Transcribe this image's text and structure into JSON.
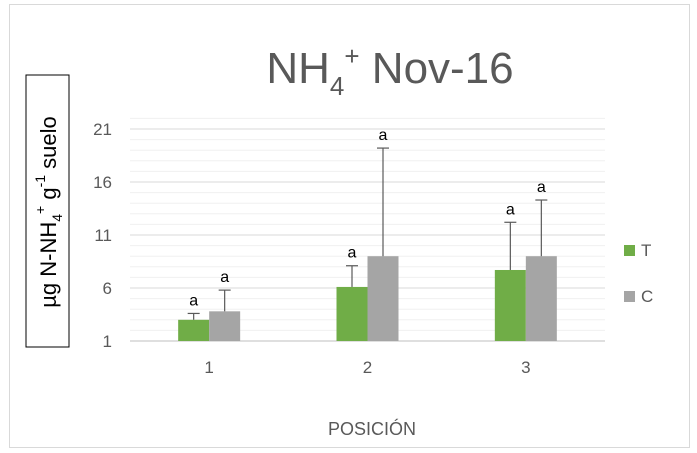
{
  "chart_data": {
    "type": "bar",
    "title": "NH4+ Nov-16",
    "title_parts": {
      "main": "NH",
      "sub": "4",
      "sup": "+",
      "rest": " Nov-16"
    },
    "xlabel": "POSICIÓN",
    "ylabel": "µg N-NH4+ g-1 suelo",
    "ylabel_parts": {
      "a": "µg N-NH",
      "sub": "4",
      "sup1": "+",
      "b": " g",
      "sup2": "-1",
      "c": " suelo"
    },
    "categories": [
      "1",
      "2",
      "3"
    ],
    "series": [
      {
        "name": "T",
        "color": "#70ad47",
        "values": [
          3.0,
          6.1,
          7.7
        ],
        "error": [
          0.6,
          2.0,
          4.5
        ],
        "labels": [
          "a",
          "a",
          "a"
        ]
      },
      {
        "name": "C",
        "color": "#a5a5a5",
        "values": [
          3.8,
          9.0,
          9.0
        ],
        "error": [
          2.0,
          10.2,
          5.3
        ],
        "labels": [
          "a",
          "a",
          "a"
        ]
      }
    ],
    "yticks": [
      1,
      6,
      11,
      16,
      21
    ],
    "ylim": [
      1,
      22
    ],
    "grid": true,
    "legend_position": "right"
  }
}
